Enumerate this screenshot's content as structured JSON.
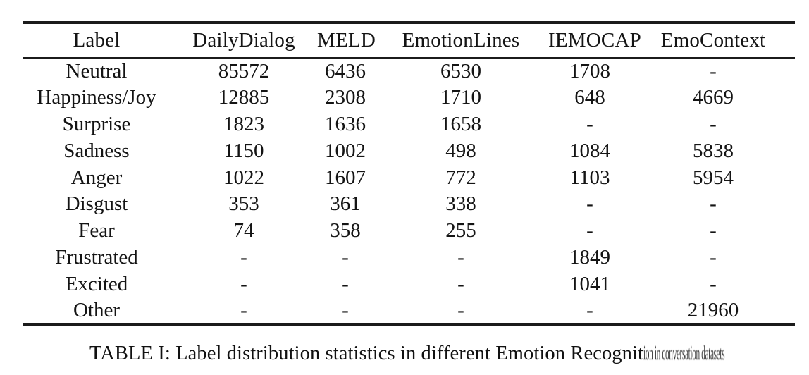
{
  "table": {
    "columns": [
      "Label",
      "DailyDialog",
      "MELD",
      "EmotionLines",
      "IEMOCAP",
      "EmoContext"
    ],
    "rows": [
      {
        "cells": [
          "Neutral",
          "85572",
          "6436",
          "6530",
          "1708",
          "-"
        ]
      },
      {
        "cells": [
          "Happiness/Joy",
          "12885",
          "2308",
          "1710",
          "648",
          "4669"
        ]
      },
      {
        "cells": [
          "Surprise",
          "1823",
          "1636",
          "1658",
          "-",
          "-"
        ]
      },
      {
        "cells": [
          "Sadness",
          "1150",
          "1002",
          "498",
          "1084",
          "5838"
        ]
      },
      {
        "cells": [
          "Anger",
          "1022",
          "1607",
          "772",
          "1103",
          "5954"
        ]
      },
      {
        "cells": [
          "Disgust",
          "353",
          "361",
          "338",
          "-",
          "-"
        ]
      },
      {
        "cells": [
          "Fear",
          "74",
          "358",
          "255",
          "-",
          "-"
        ]
      },
      {
        "cells": [
          "Frustrated",
          "-",
          "-",
          "-",
          "1849",
          "-"
        ]
      },
      {
        "cells": [
          "Excited",
          "-",
          "-",
          "-",
          "1041",
          "-"
        ]
      },
      {
        "cells": [
          "Other",
          "-",
          "-",
          "-",
          "-",
          "21960"
        ]
      }
    ]
  },
  "caption": {
    "main": "TABLE I: Label distribution statistics in different Emotion Recognit",
    "garbled_tail": "ion in conversation datasets"
  },
  "chart_data": {
    "type": "table",
    "title": "TABLE I: Label distribution statistics in different Emotion Recognition datasets",
    "categories": [
      "Neutral",
      "Happiness/Joy",
      "Surprise",
      "Sadness",
      "Anger",
      "Disgust",
      "Fear",
      "Frustrated",
      "Excited",
      "Other"
    ],
    "series": [
      {
        "name": "DailyDialog",
        "values": [
          85572,
          12885,
          1823,
          1150,
          1022,
          353,
          74,
          null,
          null,
          null
        ]
      },
      {
        "name": "MELD",
        "values": [
          6436,
          2308,
          1636,
          1002,
          1607,
          361,
          358,
          null,
          null,
          null
        ]
      },
      {
        "name": "EmotionLines",
        "values": [
          6530,
          1710,
          1658,
          498,
          772,
          338,
          255,
          null,
          null,
          null
        ]
      },
      {
        "name": "IEMOCAP",
        "values": [
          1708,
          648,
          null,
          1084,
          1103,
          null,
          null,
          1849,
          1041,
          null
        ]
      },
      {
        "name": "EmoContext",
        "values": [
          null,
          4669,
          null,
          5838,
          5954,
          null,
          null,
          null,
          null,
          21960
        ]
      }
    ]
  },
  "colors": {
    "text": "#141414",
    "rule": "#1b1b1b",
    "background": "#ffffff"
  }
}
